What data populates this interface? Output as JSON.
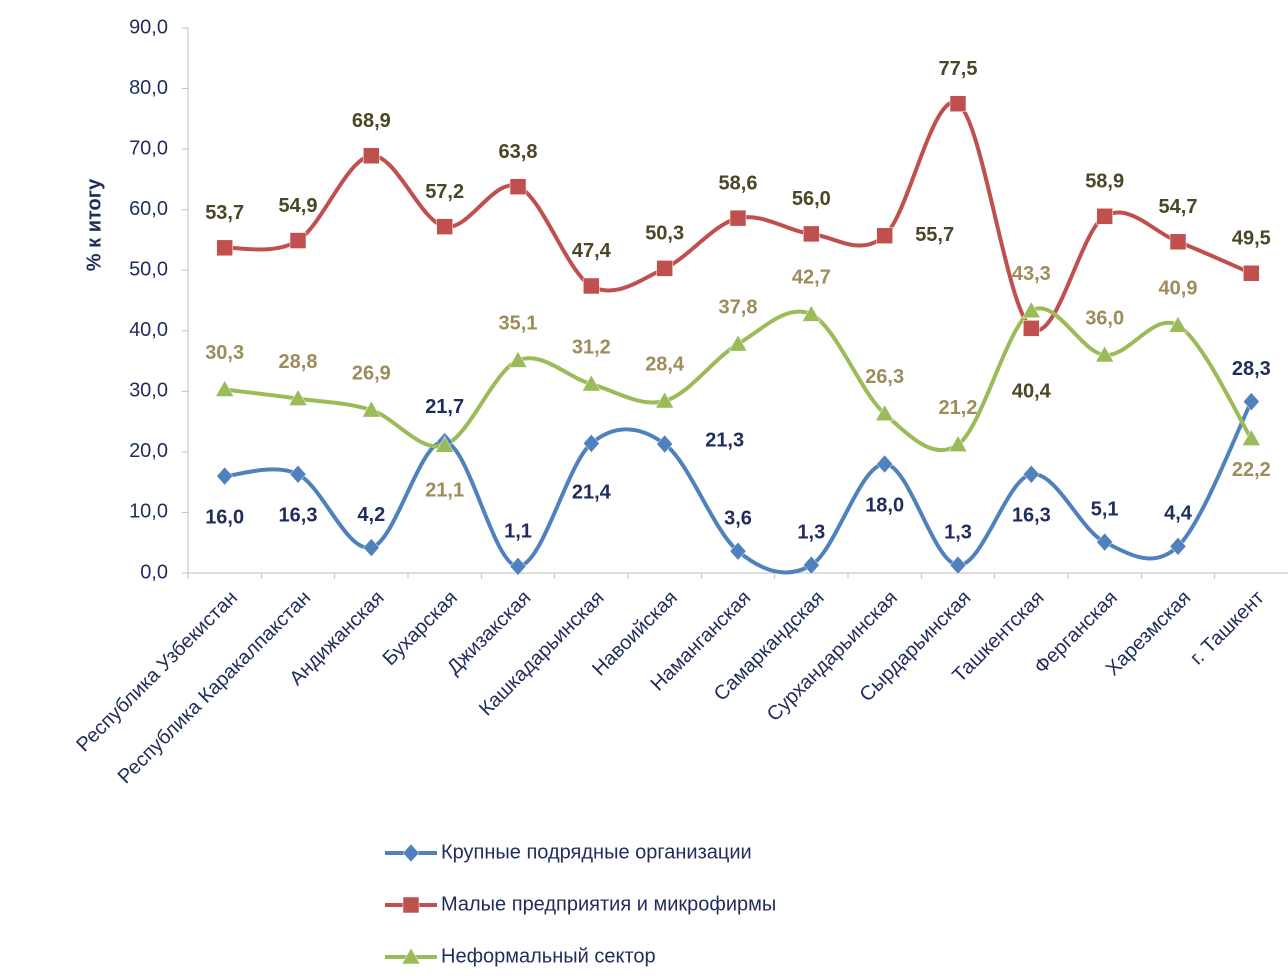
{
  "chart_data": {
    "type": "line",
    "y_label": "% к итогу",
    "categories": [
      "Республика Узбекистан",
      "Республика Каракалпакстан",
      "Андижанская",
      "Бухарская",
      "Джизакская",
      "Кашкадарьинская",
      "Навоийская",
      "Наманганская",
      "Самаркандская",
      "Сурхандарьинская",
      "Сырдарьинская",
      "Ташкентская",
      "Ферганская",
      "Харезмская",
      "г. Ташкент"
    ],
    "ylim": [
      0,
      90
    ],
    "yticks": [
      {
        "value": 0,
        "label": "0,0"
      },
      {
        "value": 10,
        "label": "10,0"
      },
      {
        "value": 20,
        "label": "20,0"
      },
      {
        "value": 30,
        "label": "30,0"
      },
      {
        "value": 40,
        "label": "40,0"
      },
      {
        "value": 50,
        "label": "50,0"
      },
      {
        "value": 60,
        "label": "60,0"
      },
      {
        "value": 70,
        "label": "70,0"
      },
      {
        "value": 80,
        "label": "80,0"
      },
      {
        "value": 90,
        "label": "90,0"
      }
    ],
    "smooth": true,
    "legend": "bottom",
    "series": [
      {
        "name": "Крупные подрядные организации",
        "color": "#4f81bd",
        "marker": "diamond",
        "label_color": "#1f2d5c",
        "values": [
          16.0,
          16.3,
          4.2,
          21.7,
          1.1,
          21.4,
          21.3,
          3.6,
          1.3,
          18.0,
          1.3,
          16.3,
          5.1,
          4.4,
          28.3
        ],
        "value_labels": [
          "16,0",
          "16,3",
          "4,2",
          "21,7",
          "1,1",
          "21,4",
          "21,3",
          "3,6",
          "1,3",
          "18,0",
          "1,3",
          "16,3",
          "5,1",
          "4,4",
          "28,3"
        ]
      },
      {
        "name": "Малые предприятия и микрофирмы",
        "color": "#c0504d",
        "marker": "square",
        "label_color": "#4a4626",
        "values": [
          53.7,
          54.9,
          68.9,
          57.2,
          63.8,
          47.4,
          50.3,
          58.6,
          56.0,
          55.7,
          77.5,
          40.4,
          58.9,
          54.7,
          49.5
        ],
        "value_labels": [
          "53,7",
          "54,9",
          "68,9",
          "57,2",
          "63,8",
          "47,4",
          "50,3",
          "58,6",
          "56,0",
          "55,7",
          "77,5",
          "40,4",
          "58,9",
          "54,7",
          "49,5"
        ]
      },
      {
        "name": "Неформальный сектор",
        "color": "#9bbb59",
        "marker": "triangle",
        "label_color": "#9e8c5c",
        "values": [
          30.3,
          28.8,
          26.9,
          21.1,
          35.1,
          31.2,
          28.4,
          37.8,
          42.7,
          26.3,
          21.2,
          43.3,
          36.0,
          40.9,
          22.2
        ],
        "value_labels": [
          "30,3",
          "28,8",
          "26,9",
          "21,1",
          "35,1",
          "31,2",
          "28,4",
          "37,8",
          "42,7",
          "26,3",
          "21,2",
          "43,3",
          "36,0",
          "40,9",
          "22,2"
        ]
      }
    ]
  }
}
